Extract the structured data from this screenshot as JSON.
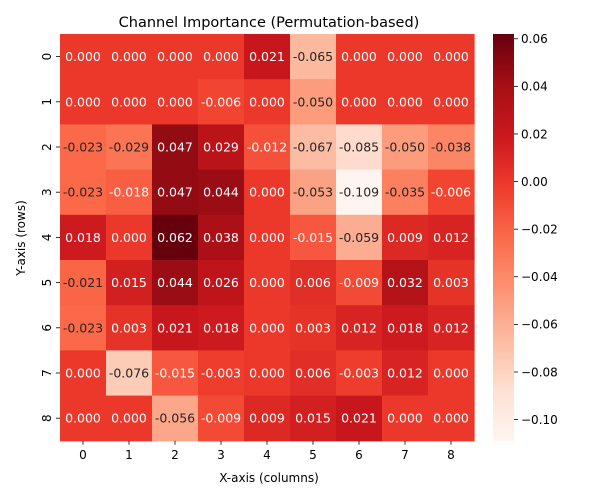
{
  "chart_data": {
    "type": "heatmap",
    "title": "Channel Importance (Permutation-based)",
    "xlabel": "X-axis (columns)",
    "ylabel": "Y-axis (rows)",
    "x_tick_labels": [
      "0",
      "1",
      "2",
      "3",
      "4",
      "5",
      "6",
      "7",
      "8"
    ],
    "y_tick_labels": [
      "0",
      "1",
      "2",
      "3",
      "4",
      "5",
      "6",
      "7",
      "8"
    ],
    "colormap": "Reds",
    "value_range": [
      -0.109,
      0.062
    ],
    "annotation_format": "3 decimals",
    "values": [
      [
        0.0,
        0.0,
        0.0,
        0.0,
        0.021,
        -0.065,
        0.0,
        0.0,
        0.0
      ],
      [
        0.0,
        0.0,
        0.0,
        -0.006,
        0.0,
        -0.05,
        0.0,
        0.0,
        0.0
      ],
      [
        -0.023,
        -0.029,
        0.047,
        0.029,
        -0.012,
        -0.067,
        -0.085,
        -0.05,
        -0.038
      ],
      [
        -0.023,
        -0.018,
        0.047,
        0.044,
        0.0,
        -0.053,
        -0.109,
        -0.035,
        -0.006
      ],
      [
        0.018,
        0.0,
        0.062,
        0.038,
        0.0,
        -0.015,
        -0.059,
        0.009,
        0.012
      ],
      [
        -0.021,
        0.015,
        0.044,
        0.026,
        0.0,
        0.006,
        -0.009,
        0.032,
        0.003
      ],
      [
        -0.023,
        0.003,
        0.021,
        0.018,
        0.0,
        0.003,
        0.012,
        0.018,
        0.012
      ],
      [
        0.0,
        -0.076,
        -0.015,
        -0.003,
        0.0,
        0.006,
        -0.003,
        0.012,
        0.0
      ],
      [
        0.0,
        0.0,
        -0.056,
        -0.009,
        0.009,
        0.015,
        0.021,
        0.0,
        0.0
      ]
    ],
    "colorbar": {
      "ticks": [
        0.06,
        0.04,
        0.02,
        0.0,
        -0.02,
        -0.04,
        -0.06,
        -0.08,
        -0.1
      ],
      "tick_labels": [
        "0.06",
        "0.04",
        "0.02",
        "0.00",
        "−0.02",
        "−0.04",
        "−0.06",
        "−0.08",
        "−0.10"
      ]
    },
    "grid": false,
    "legend": "colorbar-right"
  }
}
